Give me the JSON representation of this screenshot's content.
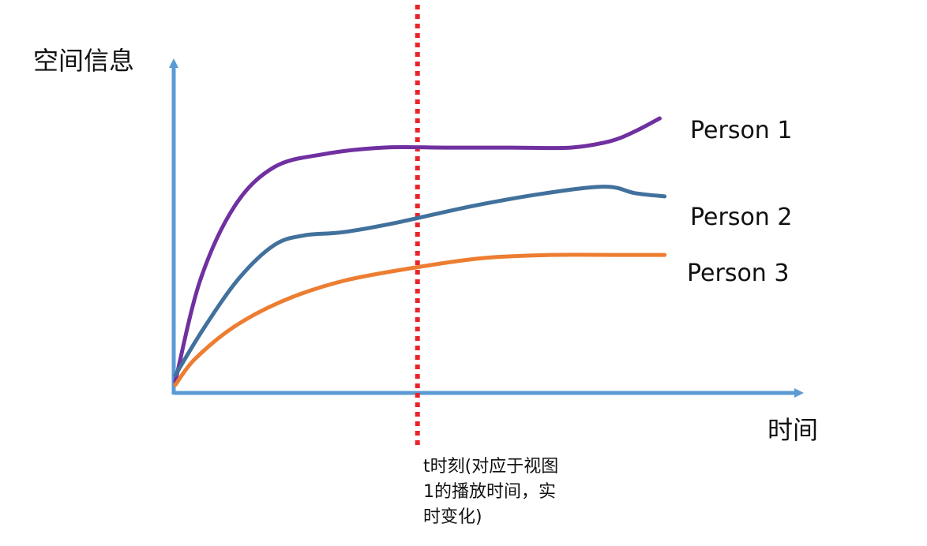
{
  "chart_data": {
    "type": "line",
    "xlabel": "时间",
    "ylabel": "空间信息",
    "grid": false,
    "legend": "inline-right",
    "colors": {
      "axis": "#5B9BD5",
      "marker": "#E8242B",
      "text": "#111111"
    },
    "series": [
      {
        "name": "Person 1",
        "color": "#7030A0",
        "x": [
          0,
          0.05,
          0.12,
          0.2,
          0.3,
          0.42,
          0.55,
          0.68,
          0.8,
          0.88,
          0.93,
          0.98
        ],
        "y": [
          0.02,
          0.33,
          0.56,
          0.68,
          0.72,
          0.74,
          0.74,
          0.74,
          0.74,
          0.76,
          0.79,
          0.83
        ]
      },
      {
        "name": "Person 2",
        "color": "#41719C",
        "x": [
          0,
          0.06,
          0.13,
          0.2,
          0.26,
          0.34,
          0.45,
          0.6,
          0.75,
          0.87,
          0.93,
          0.99
        ],
        "y": [
          0.04,
          0.19,
          0.34,
          0.44,
          0.47,
          0.48,
          0.51,
          0.56,
          0.6,
          0.62,
          0.6,
          0.59
        ]
      },
      {
        "name": "Person 3",
        "color": "#ED7D31",
        "x": [
          0,
          0.04,
          0.12,
          0.22,
          0.34,
          0.48,
          0.62,
          0.76,
          0.9,
          0.99
        ],
        "y": [
          0.01,
          0.09,
          0.19,
          0.27,
          0.33,
          0.37,
          0.4,
          0.41,
          0.41,
          0.41
        ]
      }
    ],
    "markers": [
      {
        "x": 0.49,
        "style": "dotted-vertical",
        "label_lines": [
          "t时刻(对应于视图",
          "1的播放时间，实",
          "时变化)"
        ]
      }
    ]
  }
}
